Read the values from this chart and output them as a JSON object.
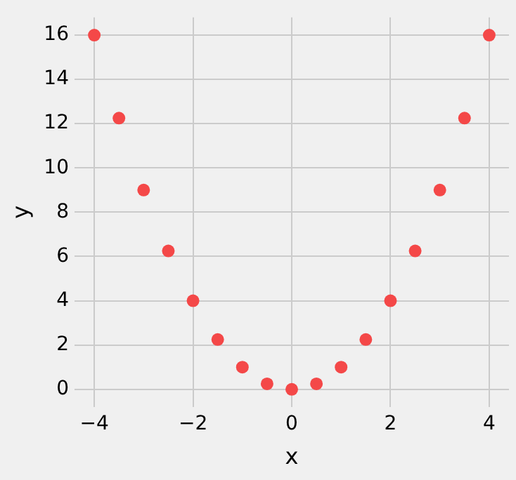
{
  "chart_data": {
    "type": "scatter",
    "xlabel": "x",
    "ylabel": "y",
    "x": [
      -4,
      -3.5,
      -3,
      -2.5,
      -2,
      -1.5,
      -1,
      -0.5,
      0,
      0.5,
      1,
      1.5,
      2,
      2.5,
      3,
      3.5,
      4
    ],
    "series": [
      {
        "color": "#f44848",
        "values": [
          16,
          12.25,
          9,
          6.25,
          4,
          2.25,
          1,
          0.25,
          0,
          0.25,
          1,
          2.25,
          4,
          6.25,
          9,
          12.25,
          16
        ]
      }
    ],
    "xlim": [
      -4.4,
      4.4
    ],
    "ylim": [
      -0.8,
      16.8
    ],
    "xticks": [
      -4,
      -2,
      0,
      2,
      4
    ],
    "yticks": [
      0,
      2,
      4,
      6,
      8,
      10,
      12,
      14,
      16
    ],
    "grid": true,
    "marker": "circle"
  }
}
